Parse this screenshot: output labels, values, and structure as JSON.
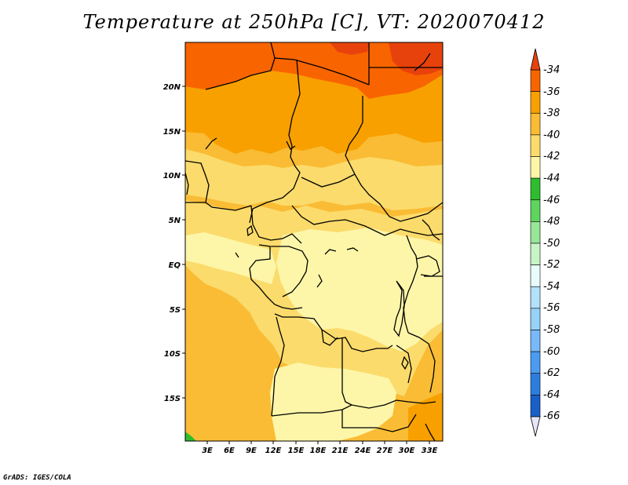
{
  "title": "Temperature at 250hPa [C], VT: 2020070412",
  "footer": "GrADS: IGES/COLA",
  "map": {
    "lat_labels": [
      "20N",
      "15N",
      "10N",
      "5N",
      "EQ",
      "5S",
      "10S",
      "15S"
    ],
    "lon_labels": [
      "3E",
      "6E",
      "9E",
      "12E",
      "15E",
      "18E",
      "21E",
      "24E",
      "27E",
      "30E",
      "33E"
    ]
  },
  "colorbar": {
    "labels": [
      "-34",
      "-36",
      "-38",
      "-40",
      "-42",
      "-44",
      "-46",
      "-48",
      "-50",
      "-52",
      "-54",
      "-56",
      "-58",
      "-60",
      "-62",
      "-64",
      "-66"
    ],
    "colors": [
      "#e8420c",
      "#f86400",
      "#f8a000",
      "#f9bc34",
      "#fbdb6b",
      "#fdf6a8",
      "#2ebd2e",
      "#5fd45f",
      "#99e699",
      "#c8f4c8",
      "#e9fbfb",
      "#b4e1fa",
      "#96d2fa",
      "#78b9fa",
      "#4b9bf0",
      "#2d7ddc",
      "#1a5fc8",
      "#0c3fa8",
      "#000a70",
      "#e6e6fa"
    ]
  },
  "fields": {
    "colors": {
      "c34": "#e8420c",
      "c36": "#f86400",
      "c38": "#f8a000",
      "c40": "#f9bc34",
      "c42": "#fbdb6b",
      "c44": "#fdf6a8",
      "c46": "#2ebd2e"
    }
  }
}
